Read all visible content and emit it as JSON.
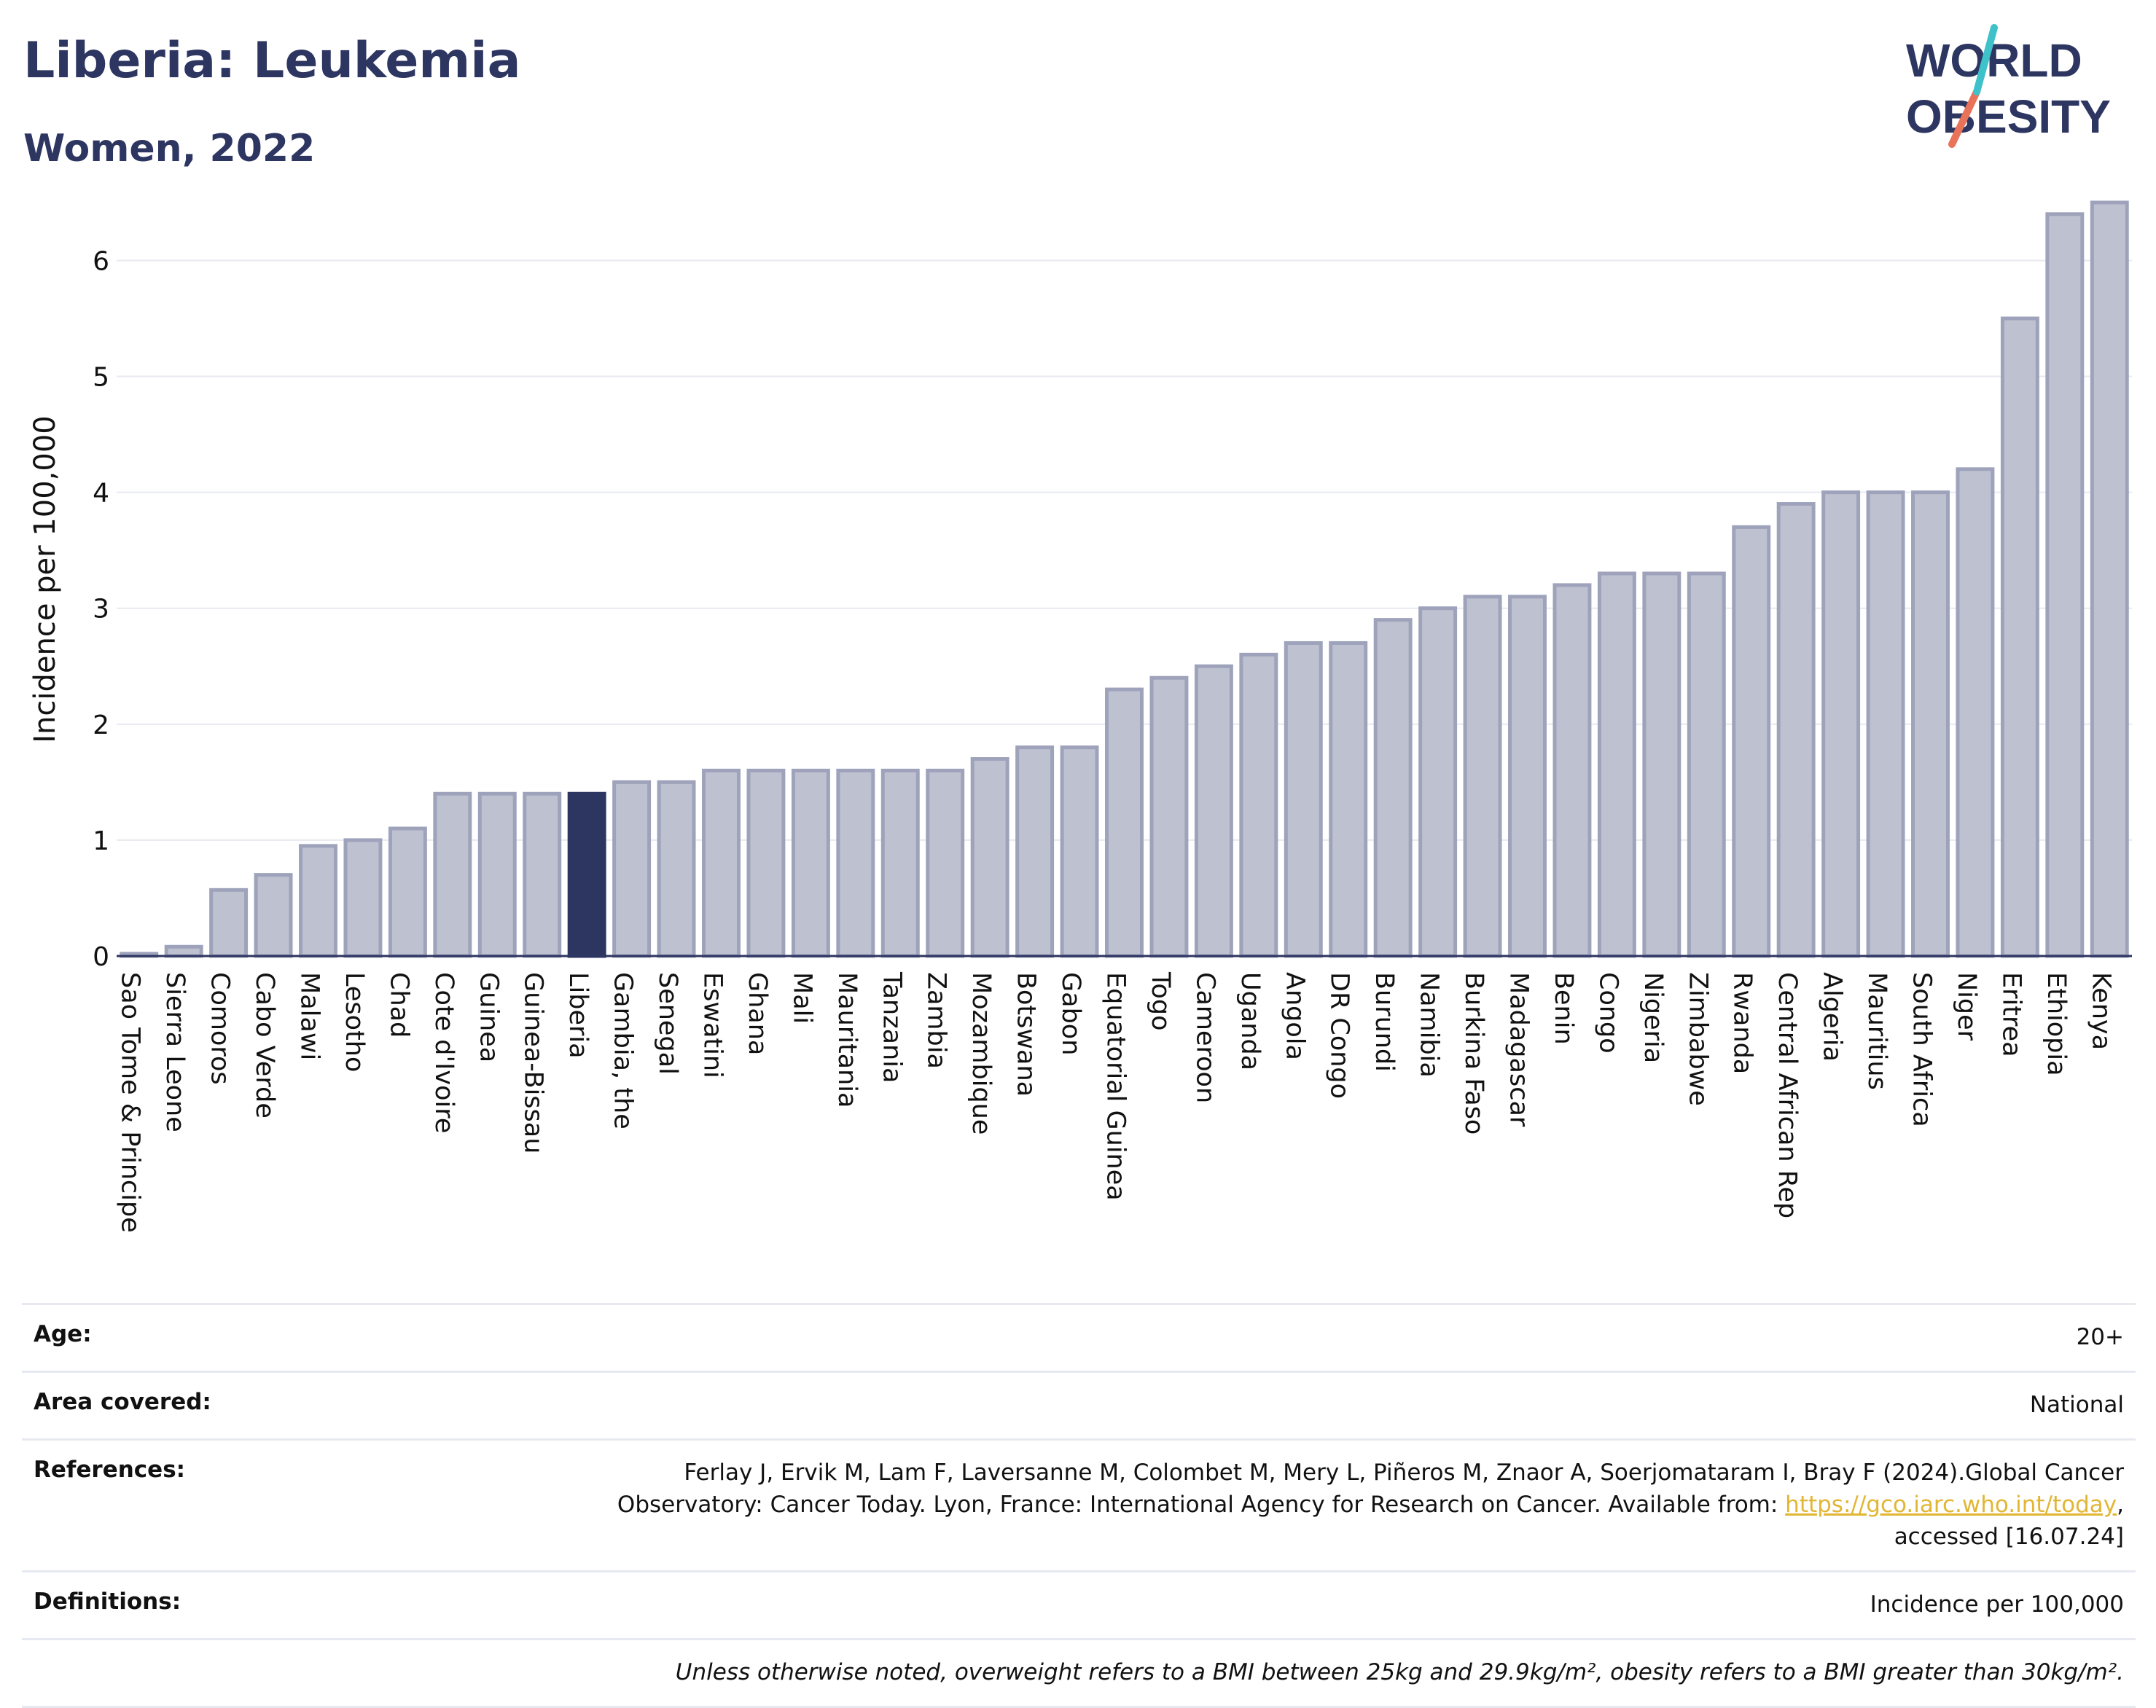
{
  "header": {
    "title": "Liberia: Leukemia",
    "subtitle": "Women, 2022"
  },
  "logo": {
    "line1": "WORLD",
    "line2": "OBESITY",
    "colors": {
      "text": "#2d3561",
      "teal": "#3fc1c9",
      "coral": "#e8735a"
    }
  },
  "chart_data": {
    "type": "bar",
    "ylabel": "Incidence per 100,000",
    "xlabel": "",
    "ylim": [
      0,
      6.6
    ],
    "yticks": [
      0,
      1,
      2,
      3,
      4,
      5,
      6
    ],
    "grid": true,
    "highlight": "Liberia",
    "colors": {
      "bar": "#bec1d0",
      "bar_border": "#9ea3bb",
      "highlight": "#2d3561"
    },
    "categories": [
      "Sao Tome & Principe",
      "Sierra Leone",
      "Comoros",
      "Cabo Verde",
      "Malawi",
      "Lesotho",
      "Chad",
      "Cote d'Ivoire",
      "Guinea",
      "Guinea-Bissau",
      "Liberia",
      "Gambia, the",
      "Senegal",
      "Eswatini",
      "Ghana",
      "Mali",
      "Mauritania",
      "Tanzania",
      "Zambia",
      "Mozambique",
      "Botswana",
      "Gabon",
      "Equatorial Guinea",
      "Togo",
      "Cameroon",
      "Uganda",
      "Angola",
      "DR Congo",
      "Burundi",
      "Namibia",
      "Burkina Faso",
      "Madagascar",
      "Benin",
      "Congo",
      "Nigeria",
      "Zimbabwe",
      "Rwanda",
      "Central African Rep",
      "Algeria",
      "Mauritius",
      "South Africa",
      "Niger",
      "Eritrea",
      "Ethiopia",
      "Kenya"
    ],
    "values": [
      0.02,
      0.08,
      0.57,
      0.7,
      0.95,
      1.0,
      1.1,
      1.4,
      1.4,
      1.4,
      1.4,
      1.5,
      1.5,
      1.6,
      1.6,
      1.6,
      1.6,
      1.6,
      1.6,
      1.7,
      1.8,
      1.8,
      2.3,
      2.4,
      2.5,
      2.6,
      2.7,
      2.7,
      2.9,
      3.0,
      3.1,
      3.1,
      3.2,
      3.3,
      3.3,
      3.3,
      3.7,
      3.9,
      4.0,
      4.0,
      4.0,
      4.2,
      5.5,
      6.4,
      6.5
    ]
  },
  "meta": {
    "age_label": "Age:",
    "age_value": "20+",
    "area_label": "Area covered:",
    "area_value": "National",
    "refs_label": "References:",
    "refs_text_1": "Ferlay J, Ervik M, Lam F, Laversanne M, Colombet M, Mery L, Piñeros M, Znaor A, Soerjomataram I, Bray F (2024).Global Cancer Observatory: Cancer Today. Lyon, France: International Agency for Research on Cancer. Available from: ",
    "refs_link": "https://gco.iarc.who.int/today",
    "refs_text_2": ", accessed [16.07.24]",
    "defs_label": "Definitions:",
    "defs_value": "Incidence per 100,000",
    "note": "Unless otherwise noted, overweight refers to a BMI between 25kg and 29.9kg/m², obesity refers to a BMI greater than 30kg/m²."
  }
}
